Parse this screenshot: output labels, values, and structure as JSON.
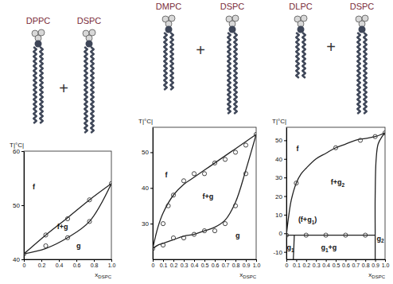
{
  "chart_data": [
    {
      "type": "line",
      "components": [
        "DPPC",
        "DSPC"
      ],
      "plus": "+",
      "x_label": "x",
      "x_label_sub": "DSPC",
      "y_label": "T|°C|",
      "xlim": [
        0,
        1
      ],
      "xticks": [
        0,
        0.2,
        0.4,
        0.6,
        0.8,
        {
          "value": 1,
          "label": "1.0"
        }
      ],
      "ylim": [
        40,
        60
      ],
      "yticks": [
        40,
        50,
        60
      ],
      "series": [
        {
          "type": "line",
          "color": "#222222",
          "line_style": "solid",
          "x": [
            0,
            0.25,
            0.5,
            0.75,
            1
          ],
          "values": [
            41,
            44.5,
            47.7,
            51,
            54
          ]
        },
        {
          "type": "line",
          "color": "#222222",
          "line_style": "solid",
          "x": [
            0,
            0.25,
            0.5,
            0.75,
            1
          ],
          "values": [
            41,
            42,
            44,
            47,
            54
          ]
        },
        {
          "type": "scatter",
          "color": "#333333",
          "marker": "circle",
          "x": [
            0,
            0.25,
            0.25,
            0.5,
            0.5,
            0.75,
            0.75,
            1
          ],
          "values": [
            41,
            44.5,
            42.5,
            47.5,
            44,
            51,
            47,
            54
          ]
        }
      ],
      "annotations": [
        {
          "text": "f",
          "x": 0.1,
          "y": 53
        },
        {
          "text": "f+g",
          "x": 0.38,
          "y": 45.6
        },
        {
          "text": "g",
          "x": 0.6,
          "y": 42
        }
      ]
    },
    {
      "type": "line",
      "components": [
        "DMPC",
        "DSPC"
      ],
      "plus": "+",
      "x_label": "x",
      "x_label_sub": "DSPC",
      "y_label": "T|°C|",
      "xlim": [
        0,
        1
      ],
      "xticks": [
        0,
        0.1,
        0.2,
        0.3,
        0.4,
        0.5,
        0.6,
        0.7,
        0.8,
        0.9,
        {
          "value": 1,
          "label": "1.0"
        }
      ],
      "ylim": [
        20,
        57
      ],
      "yticks": [
        30,
        40,
        50
      ],
      "series": [
        {
          "type": "line",
          "color": "#222222",
          "line_style": "solid",
          "x": [
            0,
            0.05,
            0.1,
            0.2,
            0.3,
            0.4,
            0.5,
            0.6,
            0.7,
            0.8,
            0.9,
            1
          ],
          "values": [
            23,
            29,
            33,
            38,
            41,
            43,
            45,
            47,
            49,
            51,
            53,
            55
          ]
        },
        {
          "type": "line",
          "color": "#222222",
          "line_style": "solid",
          "x": [
            0,
            0.05,
            0.1,
            0.2,
            0.3,
            0.4,
            0.5,
            0.6,
            0.7,
            0.8,
            0.9,
            1
          ],
          "values": [
            23,
            24,
            24.5,
            25.5,
            26.5,
            27,
            28,
            29,
            31,
            36,
            45,
            55
          ]
        },
        {
          "type": "scatter",
          "color": "#333333",
          "marker": "circle",
          "x": [
            0,
            0.1,
            0.15,
            0.2,
            0.3,
            0.4,
            0.5,
            0.6,
            0.7,
            0.8,
            0.9,
            1,
            0.1,
            0.2,
            0.3,
            0.4,
            0.5,
            0.6,
            0.7,
            0.8,
            0.9
          ],
          "values": [
            23,
            30,
            35,
            38,
            42,
            44,
            44,
            47,
            48,
            50,
            52,
            55,
            24,
            26,
            26,
            27,
            28,
            28,
            30,
            35,
            44
          ]
        }
      ],
      "annotations": [
        {
          "text": "f",
          "x": 0.12,
          "y": 43
        },
        {
          "text": "f+g",
          "x": 0.48,
          "y": 37
        },
        {
          "text": "g",
          "x": 0.8,
          "y": 26
        }
      ]
    },
    {
      "type": "line",
      "components": [
        "DLPC",
        "DSPC"
      ],
      "plus": "+",
      "x_label": "x",
      "x_label_sub": "DSPC",
      "y_label": "T|°C|",
      "xlim": [
        0,
        1
      ],
      "xticks": [
        0,
        0.1,
        0.2,
        0.3,
        0.4,
        0.5,
        0.6,
        0.7,
        0.8,
        0.9,
        {
          "value": 1,
          "label": "1.0"
        }
      ],
      "ylim": [
        -14,
        57
      ],
      "yticks": [
        -10,
        0,
        10,
        20,
        30,
        40,
        50
      ],
      "series": [
        {
          "type": "line",
          "color": "#222222",
          "line_style": "solid",
          "x": [
            0,
            0.02,
            0.05,
            0.1,
            0.15,
            0.2,
            0.3,
            0.4,
            0.5,
            0.6,
            0.7,
            0.8,
            0.9,
            1
          ],
          "values": [
            -1,
            8,
            18,
            27,
            32,
            35,
            40,
            43,
            46,
            48,
            50,
            51,
            52,
            54
          ]
        },
        {
          "type": "line",
          "color": "#222222",
          "line_style": "solid",
          "x": [
            0,
            0.9
          ],
          "values": [
            -1,
            -1
          ]
        },
        {
          "type": "line",
          "color": "#222222",
          "line_style": "solid",
          "x": [
            0.08,
            0.075,
            0.07
          ],
          "values": [
            -1,
            -8,
            -14
          ]
        },
        {
          "type": "line",
          "color": "#222222",
          "line_style": "solid",
          "x": [
            0.9,
            0.9,
            0.9,
            0.91,
            0.93,
            0.97,
            1
          ],
          "values": [
            -14,
            -1,
            20,
            40,
            48,
            52,
            54
          ]
        },
        {
          "type": "scatter",
          "color": "#333333",
          "marker": "circle",
          "x": [
            0,
            0.1,
            0.5,
            0.75,
            0.9,
            1,
            0.2,
            0.4,
            0.6,
            0.8
          ],
          "values": [
            -1,
            27,
            46,
            50,
            52,
            54,
            -1,
            -1,
            -1,
            -1
          ]
        }
      ],
      "annotations": [
        {
          "text": "f",
          "x": 0.1,
          "y": 44
        },
        {
          "text": "f+g",
          "sub": "2",
          "x": 0.45,
          "y": 26
        },
        {
          "text": "(f+g",
          "sub": "1",
          "tail": ")",
          "x": 0.12,
          "y": 6
        },
        {
          "text": "g",
          "sub": "1",
          "x": 0.005,
          "y": -9
        },
        {
          "text": "g",
          "sub": "1",
          "tail": "+g",
          "x": 0.35,
          "y": -9
        },
        {
          "text": "g",
          "sub": "2",
          "x": 0.915,
          "y": -4
        }
      ]
    }
  ]
}
